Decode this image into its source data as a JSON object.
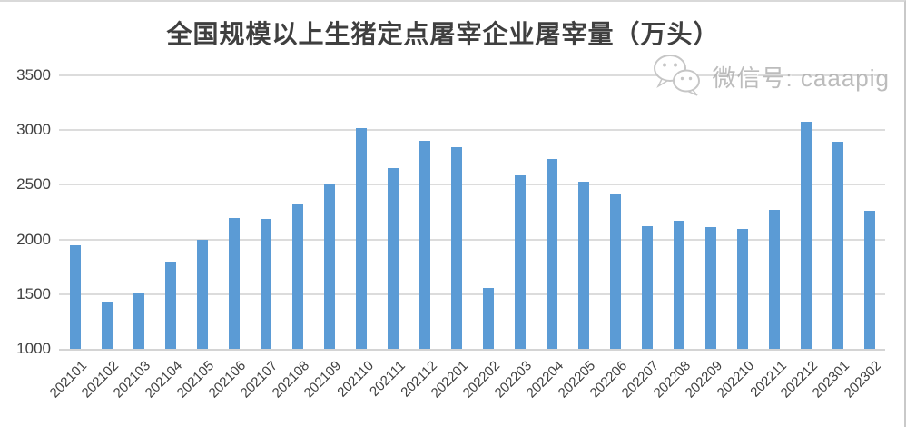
{
  "page": {
    "watermark_text": "微信号: caaapig"
  },
  "chart_data": {
    "type": "bar",
    "title": "全国规模以上生猪定点屠宰企业屠宰量（万头）",
    "categories": [
      "202101",
      "202102",
      "202103",
      "202104",
      "202105",
      "202106",
      "202107",
      "202108",
      "202109",
      "202110",
      "202111",
      "202112",
      "202201",
      "202202",
      "202203",
      "202204",
      "202205",
      "202206",
      "202207",
      "202208",
      "202209",
      "202210",
      "202211",
      "202212",
      "202301",
      "202302"
    ],
    "values": [
      1950,
      1430,
      1505,
      1800,
      2000,
      2200,
      2190,
      2330,
      2505,
      3020,
      2650,
      2900,
      2845,
      1560,
      2590,
      2740,
      2530,
      2420,
      2120,
      2170,
      2115,
      2100,
      2270,
      3080,
      2895,
      2260
    ],
    "xlabel": "",
    "ylabel": "",
    "ylim": [
      1000,
      3500
    ],
    "yticks": [
      1000,
      1500,
      2000,
      2500,
      3000,
      3500
    ],
    "grid": true,
    "legend_position": "none",
    "bar_color": "#5B9BD5",
    "gridline_color": "#DCDCDC",
    "text_color": "#404040"
  }
}
